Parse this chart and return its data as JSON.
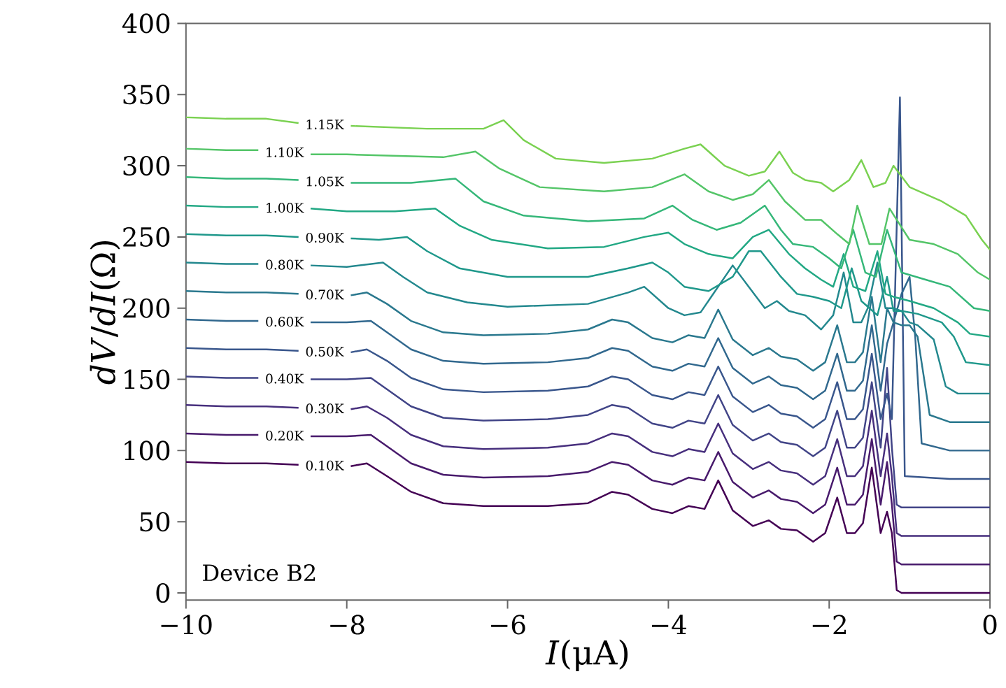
{
  "chart_data": {
    "type": "line",
    "xlabel": "*I*(μA)",
    "ylabel": "*dV*/*dI*(Ω)",
    "annotations": [
      "Device B2"
    ],
    "xlim": [
      -10,
      0
    ],
    "ylim": [
      -5,
      400
    ],
    "xticks": [
      {
        "value": -10,
        "label": "−10"
      },
      {
        "value": -8,
        "label": "−8"
      },
      {
        "value": -6,
        "label": "−6"
      },
      {
        "value": -4,
        "label": "−4"
      },
      {
        "value": -2,
        "label": "−2"
      },
      0
    ],
    "yticks": [
      0,
      50,
      100,
      150,
      200,
      250,
      300,
      350,
      400
    ],
    "legend": false,
    "marker": "none",
    "series": [
      {
        "name": "0.10K",
        "color": "#440154",
        "x": [
          -10,
          -9.5,
          -9,
          -8.6,
          -8.27,
          -7.95,
          -7.75,
          -7.5,
          -7.2,
          -6.8,
          -6.3,
          -5.5,
          -5,
          -4.7,
          -4.5,
          -4.2,
          -3.95,
          -3.75,
          -3.55,
          -3.38,
          -3.2,
          -2.95,
          -2.75,
          -2.6,
          -2.4,
          -2.2,
          -2.05,
          -1.9,
          -1.78,
          -1.68,
          -1.58,
          -1.47,
          -1.36,
          -1.28,
          -1.22,
          -1.16,
          -1.1,
          -0.5,
          0
        ],
        "values": [
          92,
          91,
          91,
          90,
          null,
          89,
          91,
          82,
          71,
          63,
          61,
          61,
          63,
          71,
          69,
          59,
          56,
          61,
          59,
          79,
          58,
          47,
          51,
          45,
          44,
          36,
          42,
          67,
          42,
          42,
          49,
          88,
          42,
          57,
          42,
          2,
          0,
          0,
          0
        ]
      },
      {
        "name": "0.20K",
        "color": "#481a6c",
        "x": [
          -10,
          -9.5,
          -9.1,
          -8.78,
          -8.45,
          -8,
          -7.7,
          -7.5,
          -7.2,
          -6.8,
          -6.3,
          -5.5,
          -5,
          -4.7,
          -4.5,
          -4.2,
          -3.95,
          -3.75,
          -3.55,
          -3.38,
          -3.2,
          -2.95,
          -2.75,
          -2.6,
          -2.4,
          -2.2,
          -2.05,
          -1.9,
          -1.78,
          -1.68,
          -1.58,
          -1.47,
          -1.36,
          -1.28,
          -1.22,
          -1.16,
          -1.1,
          -0.5,
          0
        ],
        "values": [
          112,
          111,
          111,
          null,
          110,
          110,
          111,
          103,
          91,
          83,
          81,
          82,
          85,
          92,
          90,
          79,
          76,
          81,
          79,
          99,
          78,
          67,
          72,
          66,
          64,
          56,
          62,
          88,
          62,
          62,
          69,
          108,
          62,
          92,
          62,
          22,
          20,
          20,
          20
        ]
      },
      {
        "name": "0.30K",
        "color": "#472f7d",
        "x": [
          -10,
          -9.5,
          -9,
          -8.6,
          -8.27,
          -7.95,
          -7.75,
          -7.5,
          -7.2,
          -6.8,
          -6.3,
          -5.5,
          -5,
          -4.7,
          -4.5,
          -4.2,
          -3.95,
          -3.75,
          -3.55,
          -3.38,
          -3.2,
          -2.95,
          -2.75,
          -2.6,
          -2.4,
          -2.2,
          -2.05,
          -1.9,
          -1.78,
          -1.68,
          -1.58,
          -1.47,
          -1.36,
          -1.28,
          -1.22,
          -1.16,
          -1.1,
          -0.5,
          0
        ],
        "values": [
          132,
          131,
          131,
          130,
          null,
          129,
          131,
          123,
          111,
          103,
          101,
          102,
          105,
          112,
          110,
          99,
          96,
          101,
          99,
          119,
          98,
          87,
          92,
          86,
          84,
          76,
          82,
          108,
          82,
          82,
          89,
          128,
          82,
          112,
          82,
          42,
          40,
          40,
          40
        ]
      },
      {
        "name": "0.40K",
        "color": "#414487",
        "x": [
          -10,
          -9.5,
          -9.1,
          -8.78,
          -8.45,
          -8,
          -7.7,
          -7.5,
          -7.2,
          -6.8,
          -6.3,
          -5.5,
          -5,
          -4.7,
          -4.5,
          -4.2,
          -3.95,
          -3.75,
          -3.55,
          -3.38,
          -3.2,
          -2.95,
          -2.75,
          -2.6,
          -2.4,
          -2.2,
          -2.05,
          -1.9,
          -1.78,
          -1.68,
          -1.58,
          -1.47,
          -1.36,
          -1.28,
          -1.22,
          -1.16,
          -1.1,
          -0.5,
          0
        ],
        "values": [
          152,
          151,
          151,
          null,
          150,
          150,
          151,
          143,
          131,
          123,
          121,
          122,
          125,
          132,
          130,
          119,
          116,
          121,
          119,
          139,
          118,
          107,
          112,
          106,
          104,
          96,
          102,
          128,
          102,
          102,
          109,
          148,
          102,
          158,
          102,
          62,
          60,
          60,
          60
        ]
      },
      {
        "name": "0.50K",
        "color": "#39568c",
        "x": [
          -10,
          -9.5,
          -9,
          -8.6,
          -8.27,
          -7.95,
          -7.75,
          -7.5,
          -7.2,
          -6.8,
          -6.3,
          -5.5,
          -5,
          -4.7,
          -4.5,
          -4.2,
          -3.95,
          -3.75,
          -3.55,
          -3.38,
          -3.2,
          -2.95,
          -2.75,
          -2.6,
          -2.4,
          -2.2,
          -2.05,
          -1.9,
          -1.78,
          -1.68,
          -1.58,
          -1.47,
          -1.36,
          -1.28,
          -1.22,
          -1.12,
          -1.06,
          -0.5,
          0
        ],
        "values": [
          172,
          171,
          171,
          170,
          null,
          169,
          171,
          163,
          151,
          143,
          141,
          142,
          145,
          152,
          150,
          139,
          136,
          141,
          139,
          159,
          138,
          127,
          132,
          126,
          124,
          116,
          122,
          148,
          122,
          122,
          129,
          168,
          122,
          140,
          122,
          348,
          82,
          80,
          80
        ]
      },
      {
        "name": "0.60K",
        "color": "#31688e",
        "x": [
          -10,
          -9.5,
          -9.1,
          -8.78,
          -8.45,
          -8,
          -7.7,
          -7.5,
          -7.2,
          -6.8,
          -6.3,
          -5.5,
          -5,
          -4.7,
          -4.5,
          -4.2,
          -3.95,
          -3.75,
          -3.55,
          -3.38,
          -3.2,
          -2.95,
          -2.75,
          -2.6,
          -2.4,
          -2.2,
          -2.05,
          -1.9,
          -1.78,
          -1.68,
          -1.58,
          -1.47,
          -1.36,
          -1.28,
          -1.2,
          -1.1,
          -1.0,
          -0.93,
          -0.85,
          -0.5,
          0
        ],
        "values": [
          192,
          191,
          191,
          null,
          190,
          190,
          191,
          183,
          171,
          163,
          161,
          162,
          165,
          172,
          170,
          159,
          156,
          161,
          159,
          179,
          158,
          147,
          152,
          146,
          144,
          136,
          142,
          168,
          142,
          142,
          149,
          188,
          142,
          175,
          190,
          210,
          222,
          180,
          105,
          100,
          100
        ]
      },
      {
        "name": "0.70K",
        "color": "#2a788e",
        "x": [
          -10,
          -9.5,
          -9,
          -8.6,
          -8.27,
          -7.95,
          -7.75,
          -7.5,
          -7.2,
          -6.8,
          -6.3,
          -5.5,
          -5,
          -4.7,
          -4.5,
          -4.2,
          -3.95,
          -3.75,
          -3.55,
          -3.38,
          -3.2,
          -2.95,
          -2.75,
          -2.6,
          -2.4,
          -2.2,
          -2.05,
          -1.9,
          -1.78,
          -1.68,
          -1.58,
          -1.47,
          -1.36,
          -1.28,
          -1.2,
          -1.1,
          -1.0,
          -0.9,
          -0.75,
          -0.5,
          0
        ],
        "values": [
          212,
          211,
          211,
          210,
          null,
          209,
          211,
          203,
          191,
          183,
          181,
          182,
          185,
          192,
          190,
          179,
          176,
          181,
          179,
          199,
          178,
          167,
          172,
          166,
          164,
          156,
          162,
          188,
          162,
          162,
          169,
          208,
          162,
          200,
          190,
          188,
          188,
          180,
          125,
          120,
          120
        ]
      },
      {
        "name": "0.80K",
        "color": "#23888e",
        "x": [
          -10,
          -9.5,
          -9.1,
          -8.78,
          -8.45,
          -8,
          -7.55,
          -7.3,
          -7,
          -6.5,
          -6,
          -5,
          -4.5,
          -4.3,
          -4,
          -3.8,
          -3.6,
          -3.2,
          -3,
          -2.8,
          -2.65,
          -2.5,
          -2.3,
          -2.1,
          -1.95,
          -1.82,
          -1.7,
          -1.6,
          -1.52,
          -1.4,
          -1.3,
          -1.2,
          -1.1,
          -1.0,
          -0.9,
          -0.7,
          -0.55,
          -0.4,
          0
        ],
        "values": [
          232,
          231,
          231,
          null,
          230,
          229,
          232,
          222,
          211,
          204,
          201,
          203,
          211,
          215,
          200,
          195,
          197,
          230,
          215,
          200,
          205,
          198,
          195,
          185,
          195,
          225,
          190,
          190,
          200,
          232,
          200,
          200,
          198,
          190,
          188,
          178,
          145,
          140,
          140
        ]
      },
      {
        "name": "0.90K",
        "color": "#1f988b",
        "x": [
          -10,
          -9.5,
          -9,
          -8.6,
          -8.27,
          -7.95,
          -7.6,
          -7.25,
          -7,
          -6.6,
          -6,
          -5,
          -4.5,
          -4.2,
          -4,
          -3.8,
          -3.5,
          -3.2,
          -3.0,
          -2.85,
          -2.6,
          -2.4,
          -2.2,
          -2.0,
          -1.85,
          -1.72,
          -1.6,
          -1.5,
          -1.4,
          -1.28,
          -1.2,
          -1.1,
          -0.9,
          -0.6,
          -0.45,
          -0.3,
          0
        ],
        "values": [
          252,
          251,
          251,
          250,
          null,
          249,
          248,
          250,
          240,
          228,
          222,
          222,
          228,
          232,
          225,
          215,
          212,
          222,
          240,
          240,
          222,
          210,
          208,
          205,
          200,
          228,
          205,
          200,
          195,
          222,
          198,
          198,
          196,
          190,
          180,
          162,
          160
        ]
      },
      {
        "name": "1.00K",
        "color": "#22a884",
        "x": [
          -10,
          -9.5,
          -9.1,
          -8.78,
          -8.45,
          -8,
          -7.4,
          -6.9,
          -6.6,
          -6.2,
          -5.5,
          -4.8,
          -4.3,
          -4.0,
          -3.8,
          -3.5,
          -3.2,
          -2.95,
          -2.75,
          -2.5,
          -2.3,
          -2.1,
          -1.95,
          -1.82,
          -1.7,
          -1.55,
          -1.4,
          -1.3,
          -1.2,
          -1.0,
          -0.7,
          -0.4,
          -0.25,
          0
        ],
        "values": [
          272,
          271,
          271,
          null,
          270,
          268,
          268,
          270,
          258,
          248,
          242,
          243,
          250,
          253,
          245,
          238,
          235,
          250,
          255,
          238,
          228,
          220,
          215,
          238,
          215,
          212,
          240,
          210,
          208,
          205,
          200,
          190,
          182,
          180
        ]
      },
      {
        "name": "1.05K",
        "color": "#35b779",
        "x": [
          -10,
          -9.5,
          -9,
          -8.6,
          -8.27,
          -7.95,
          -7.2,
          -6.65,
          -6.3,
          -5.8,
          -5,
          -4.3,
          -3.95,
          -3.7,
          -3.4,
          -3.1,
          -2.8,
          -2.6,
          -2.45,
          -2.2,
          -2,
          -1.85,
          -1.7,
          -1.55,
          -1.42,
          -1.28,
          -1.1,
          -0.8,
          -0.5,
          -0.2,
          0
        ],
        "values": [
          292,
          291,
          291,
          290,
          null,
          288,
          288,
          291,
          275,
          265,
          261,
          263,
          272,
          262,
          255,
          260,
          272,
          255,
          245,
          243,
          235,
          228,
          255,
          225,
          222,
          255,
          225,
          220,
          215,
          200,
          198
        ]
      },
      {
        "name": "1.10K",
        "color": "#54c568",
        "x": [
          -10,
          -9.5,
          -9.1,
          -8.78,
          -8.45,
          -8,
          -6.8,
          -6.4,
          -6.1,
          -5.6,
          -4.8,
          -4.2,
          -3.8,
          -3.5,
          -3.2,
          -2.95,
          -2.75,
          -2.55,
          -2.3,
          -2.1,
          -1.9,
          -1.75,
          -1.65,
          -1.5,
          -1.35,
          -1.25,
          -1.0,
          -0.7,
          -0.4,
          -0.15,
          0
        ],
        "values": [
          312,
          311,
          311,
          null,
          308,
          308,
          306,
          310,
          298,
          285,
          282,
          285,
          294,
          282,
          276,
          280,
          290,
          275,
          262,
          262,
          252,
          245,
          272,
          245,
          245,
          270,
          248,
          245,
          238,
          225,
          220
        ]
      },
      {
        "name": "1.15K",
        "color": "#7ad151",
        "x": [
          -10,
          -9.5,
          -9,
          -8.6,
          -8.27,
          -7.95,
          -7,
          -6.3,
          -6.05,
          -5.8,
          -5.4,
          -4.8,
          -4.2,
          -3.8,
          -3.6,
          -3.3,
          -3.0,
          -2.8,
          -2.62,
          -2.45,
          -2.3,
          -2.1,
          -1.95,
          -1.75,
          -1.6,
          -1.45,
          -1.3,
          -1.2,
          -1.0,
          -0.6,
          -0.3,
          -0.1,
          0
        ],
        "values": [
          334,
          333,
          333,
          330,
          null,
          328,
          326,
          326,
          332,
          318,
          305,
          302,
          305,
          312,
          315,
          300,
          293,
          296,
          310,
          295,
          290,
          288,
          282,
          290,
          304,
          285,
          288,
          300,
          285,
          275,
          265,
          248,
          241
        ]
      }
    ]
  }
}
